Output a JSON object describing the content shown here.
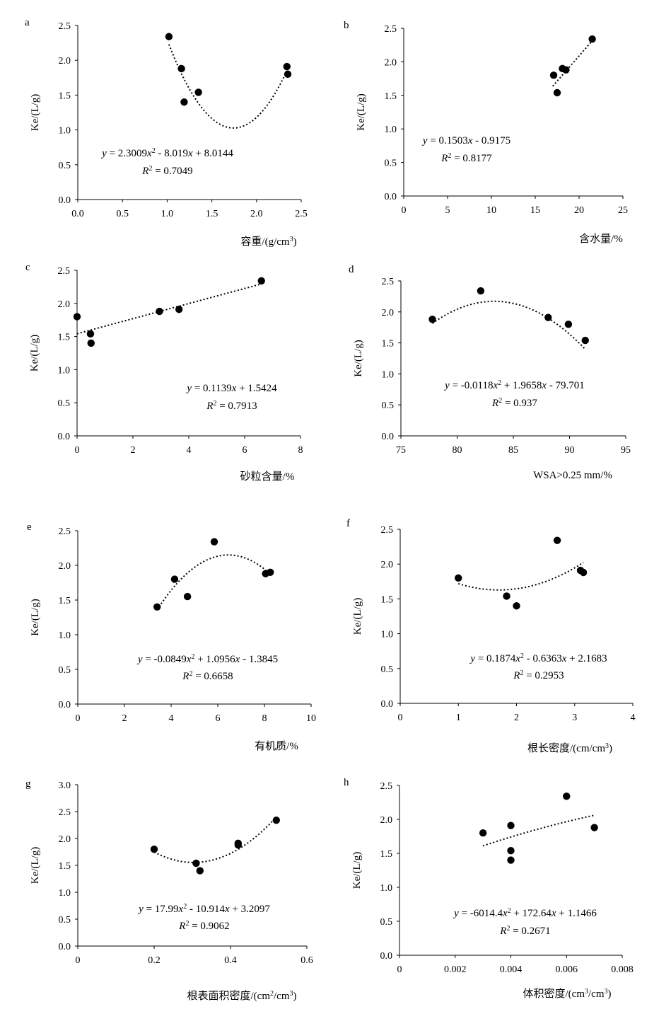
{
  "chart_data": [
    {
      "type": "scatter",
      "panel": "a",
      "ylabel": "Ke/(L/g)",
      "xlabel": "容重/(g/cm3)",
      "xlabel_parts": [
        "容重/(g/cm",
        "3",
        ")"
      ],
      "xlim": [
        0,
        2.5
      ],
      "xticks": [
        0,
        0.5,
        1.0,
        1.5,
        2.0,
        2.5
      ],
      "xtick_labels": [
        "0.0",
        "0.5",
        "1.0",
        "1.5",
        "2.0",
        "2.5"
      ],
      "ylim": [
        0,
        2.5
      ],
      "yticks": [
        0,
        0.5,
        1.0,
        1.5,
        2.0,
        2.5
      ],
      "ytick_labels": [
        "0.0",
        "0.5",
        "1.0",
        "1.5",
        "2.0",
        "2.5"
      ],
      "points": [
        [
          1.02,
          2.34
        ],
        [
          1.16,
          1.88
        ],
        [
          1.19,
          1.4
        ],
        [
          1.35,
          1.54
        ],
        [
          2.34,
          1.91
        ],
        [
          2.35,
          1.8
        ]
      ],
      "trend": {
        "kind": "poly2",
        "coef": [
          2.3009,
          -8.019,
          8.0144
        ],
        "range": [
          1.02,
          2.35
        ]
      },
      "equation": {
        "prefix": "y = 2.3009x",
        "sup": "2",
        "suffix": " - 8.019x + 8.0144"
      },
      "r2": "0.7049"
    },
    {
      "type": "scatter",
      "panel": "b",
      "ylabel": "Ke/(L/g)",
      "xlabel": "含水量/%",
      "xlabel_parts": [
        "含水量/%",
        "",
        ""
      ],
      "xlim": [
        0,
        25
      ],
      "xticks": [
        0,
        5,
        10,
        15,
        20,
        25
      ],
      "xtick_labels": [
        "0",
        "5",
        "10",
        "15",
        "20",
        "25"
      ],
      "ylim": [
        0,
        2.5
      ],
      "yticks": [
        0,
        0.5,
        1.0,
        1.5,
        2.0,
        2.5
      ],
      "ytick_labels": [
        "0.0",
        "0.5",
        "1.0",
        "1.5",
        "2.0",
        "2.5"
      ],
      "points": [
        [
          17.1,
          1.8
        ],
        [
          17.5,
          1.54
        ],
        [
          18.1,
          1.9
        ],
        [
          18.5,
          1.88
        ],
        [
          21.5,
          2.34
        ]
      ],
      "trend": {
        "kind": "poly1",
        "coef": [
          0.1503,
          -0.9175
        ],
        "range": [
          17.0,
          21.7
        ]
      },
      "equation": {
        "prefix": "y = 0.1503x",
        "sup": "",
        "suffix": " - 0.9175"
      },
      "r2": "0.8177"
    },
    {
      "type": "scatter",
      "panel": "c",
      "ylabel": "Ke/(L/g)",
      "xlabel": "砂粒含量/%",
      "xlabel_parts": [
        "砂粒含量/%",
        "",
        ""
      ],
      "xlim": [
        0,
        8
      ],
      "xticks": [
        0,
        2,
        4,
        6,
        8
      ],
      "xtick_labels": [
        "0",
        "2",
        "4",
        "6",
        "8"
      ],
      "ylim": [
        0,
        2.5
      ],
      "yticks": [
        0,
        0.5,
        1.0,
        1.5,
        2.0,
        2.5
      ],
      "ytick_labels": [
        "0.0",
        "0.5",
        "1.0",
        "1.5",
        "2.0",
        "2.5"
      ],
      "points": [
        [
          0.0,
          1.8
        ],
        [
          0.48,
          1.54
        ],
        [
          0.5,
          1.4
        ],
        [
          2.95,
          1.88
        ],
        [
          3.65,
          1.91
        ],
        [
          6.6,
          2.34
        ]
      ],
      "trend": {
        "kind": "poly1",
        "coef": [
          0.1139,
          1.5424
        ],
        "range": [
          0.0,
          6.6
        ]
      },
      "equation": {
        "prefix": "y = 0.1139x",
        "sup": "",
        "suffix": " + 1.5424"
      },
      "r2": "0.7913"
    },
    {
      "type": "scatter",
      "panel": "d",
      "ylabel": "Ke/(L/g)",
      "xlabel": "WSA>0.25 mm/%",
      "xlabel_parts": [
        "WSA>0.25 mm/%",
        "",
        ""
      ],
      "xlim": [
        75,
        95
      ],
      "xticks": [
        75,
        80,
        85,
        90,
        95
      ],
      "xtick_labels": [
        "75",
        "80",
        "85",
        "90",
        "95"
      ],
      "ylim": [
        0,
        2.5
      ],
      "yticks": [
        0,
        0.5,
        1.0,
        1.5,
        2.0,
        2.5
      ],
      "ytick_labels": [
        "0.0",
        "0.5",
        "1.0",
        "1.5",
        "2.0",
        "2.5"
      ],
      "points": [
        [
          77.8,
          1.88
        ],
        [
          82.1,
          2.34
        ],
        [
          88.1,
          1.91
        ],
        [
          89.9,
          1.8
        ],
        [
          91.4,
          1.54
        ]
      ],
      "trend": {
        "kind": "poly2",
        "coef": [
          -0.0118,
          1.9658,
          -79.701
        ],
        "range": [
          77.8,
          91.4
        ]
      },
      "equation": {
        "prefix": "y = -0.0118x",
        "sup": "2",
        "suffix": " + 1.9658x - 79.701"
      },
      "r2": "0.937"
    },
    {
      "type": "scatter",
      "panel": "e",
      "ylabel": "Ke/(L/g)",
      "xlabel": "有机质/%",
      "xlabel_parts": [
        "有机质/%",
        "",
        ""
      ],
      "xlim": [
        0,
        10
      ],
      "xticks": [
        0,
        2,
        4,
        6,
        8,
        10
      ],
      "xtick_labels": [
        "0",
        "2",
        "4",
        "6",
        "8",
        "10"
      ],
      "ylim": [
        0,
        2.5
      ],
      "yticks": [
        0,
        0.5,
        1.0,
        1.5,
        2.0,
        2.5
      ],
      "ytick_labels": [
        "0.0",
        "0.5",
        "1.0",
        "1.5",
        "2.0",
        "2.5"
      ],
      "points": [
        [
          3.4,
          1.4
        ],
        [
          4.15,
          1.8
        ],
        [
          4.7,
          1.55
        ],
        [
          5.85,
          2.34
        ],
        [
          8.05,
          1.88
        ],
        [
          8.25,
          1.9
        ]
      ],
      "trend": {
        "kind": "poly2",
        "coef": [
          -0.0849,
          1.0956,
          -1.3845
        ],
        "range": [
          3.4,
          8.25
        ]
      },
      "equation": {
        "prefix": "y = -0.0849x",
        "sup": "2",
        "suffix": " + 1.0956x - 1.3845"
      },
      "r2": "0.6658"
    },
    {
      "type": "scatter",
      "panel": "f",
      "ylabel": "Ke/(L/g)",
      "xlabel": "根长密度/(cm/cm3)",
      "xlabel_parts": [
        "根长密度/(cm/cm",
        "3",
        ")"
      ],
      "xlim": [
        0,
        4
      ],
      "xticks": [
        0,
        1,
        2,
        3,
        4
      ],
      "xtick_labels": [
        "0",
        "1",
        "2",
        "3",
        "4"
      ],
      "ylim": [
        0,
        2.5
      ],
      "yticks": [
        0,
        0.5,
        1.0,
        1.5,
        2.0,
        2.5
      ],
      "ytick_labels": [
        "0.0",
        "0.5",
        "1.0",
        "1.5",
        "2.0",
        "2.5"
      ],
      "points": [
        [
          1.0,
          1.8
        ],
        [
          1.83,
          1.54
        ],
        [
          2.0,
          1.4
        ],
        [
          2.7,
          2.34
        ],
        [
          3.1,
          1.91
        ],
        [
          3.15,
          1.88
        ]
      ],
      "trend": {
        "kind": "poly2",
        "coef": [
          0.1874,
          -0.6363,
          2.1683
        ],
        "range": [
          1.0,
          3.15
        ]
      },
      "equation": {
        "prefix": "y = 0.1874x",
        "sup": "2",
        "suffix": " - 0.6363x + 2.1683"
      },
      "r2": "0.2953"
    },
    {
      "type": "scatter",
      "panel": "g",
      "ylabel": "Ke/(L/g)",
      "xlabel": "根表面积密度/(cm2/cm3)",
      "xlabel_parts": [
        "根表面积密度/(cm",
        "2",
        "/cm",
        "3",
        ")"
      ],
      "xlim": [
        0,
        0.6
      ],
      "xticks": [
        0,
        0.2,
        0.4,
        0.6
      ],
      "xtick_labels": [
        "0",
        "0.2",
        "0.4",
        "0.6"
      ],
      "ylim": [
        0,
        3.0
      ],
      "yticks": [
        0,
        0.5,
        1.0,
        1.5,
        2.0,
        2.5,
        3.0
      ],
      "ytick_labels": [
        "0.0",
        "0.5",
        "1.0",
        "1.5",
        "2.0",
        "2.5",
        "3.0"
      ],
      "points": [
        [
          0.2,
          1.8
        ],
        [
          0.31,
          1.54
        ],
        [
          0.32,
          1.4
        ],
        [
          0.42,
          1.91
        ],
        [
          0.42,
          1.88
        ],
        [
          0.52,
          2.34
        ]
      ],
      "trend": {
        "kind": "poly2",
        "coef": [
          17.99,
          -10.914,
          3.2097
        ],
        "range": [
          0.2,
          0.52
        ]
      },
      "equation": {
        "prefix": "y = 17.99x",
        "sup": "2",
        "suffix": " - 10.914x + 3.2097"
      },
      "r2": "0.9062"
    },
    {
      "type": "scatter",
      "panel": "h",
      "ylabel": "Ke/(L/g)",
      "xlabel": "体积密度/(cm3/cm3)",
      "xlabel_parts": [
        "体积密度/(cm",
        "3",
        "/cm",
        "3",
        ")"
      ],
      "xlim": [
        0,
        0.008
      ],
      "xticks": [
        0,
        0.002,
        0.004,
        0.006,
        0.008
      ],
      "xtick_labels": [
        "0",
        "0.002",
        "0.004",
        "0.006",
        "0.008"
      ],
      "ylim": [
        0,
        2.5
      ],
      "yticks": [
        0,
        0.5,
        1.0,
        1.5,
        2.0,
        2.5
      ],
      "ytick_labels": [
        "0.0",
        "0.5",
        "1.0",
        "1.5",
        "2.0",
        "2.5"
      ],
      "points": [
        [
          0.003,
          1.8
        ],
        [
          0.004,
          1.91
        ],
        [
          0.004,
          1.54
        ],
        [
          0.004,
          1.4
        ],
        [
          0.006,
          2.34
        ],
        [
          0.007,
          1.88
        ]
      ],
      "trend": {
        "kind": "poly2",
        "coef": [
          -6014.4,
          172.64,
          1.1466
        ],
        "range": [
          0.003,
          0.007
        ]
      },
      "equation": {
        "prefix": "y = -6014.4x",
        "sup": "2",
        "suffix": " + 172.64x + 1.1466"
      },
      "r2": "0.2671"
    }
  ]
}
